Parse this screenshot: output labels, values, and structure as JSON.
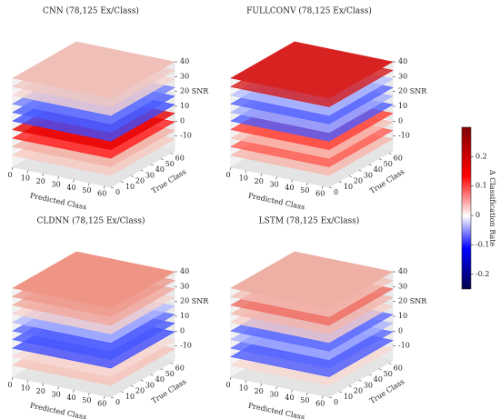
{
  "chart_data": [
    {
      "type": "cube3d",
      "title": "CNN (78,125 Ex/Class)",
      "xlabel": "Predicted Class",
      "ylabel": "True Class",
      "zlabel": "SNR",
      "xlim": [
        0,
        64
      ],
      "ylim": [
        0,
        64
      ],
      "zlim": [
        -20,
        40
      ],
      "xticks": [
        0,
        10,
        20,
        30,
        40,
        50,
        60
      ],
      "yticks": [
        0,
        10,
        20,
        30,
        40,
        50,
        60
      ],
      "zticks": [
        -10,
        0,
        10,
        20,
        30,
        40
      ]
    },
    {
      "type": "cube3d",
      "title": "FULLCONV (78,125 Ex/Class)",
      "xlabel": "Predicted Class",
      "ylabel": "True Class",
      "zlabel": "SNR",
      "xlim": [
        0,
        64
      ],
      "ylim": [
        0,
        64
      ],
      "zlim": [
        -20,
        40
      ],
      "xticks": [
        0,
        10,
        20,
        30,
        40,
        50,
        60
      ],
      "yticks": [
        0,
        10,
        20,
        30,
        40,
        50,
        60
      ],
      "zticks": [
        -10,
        0,
        10,
        20,
        30,
        40
      ]
    },
    {
      "type": "cube3d",
      "title": "CLDNN (78,125 Ex/Class)",
      "xlabel": "Predicted Class",
      "ylabel": "True Class",
      "zlabel": "SNR",
      "xlim": [
        0,
        64
      ],
      "ylim": [
        0,
        64
      ],
      "zlim": [
        -20,
        40
      ],
      "xticks": [
        0,
        10,
        20,
        30,
        40,
        50,
        60
      ],
      "yticks": [
        0,
        10,
        20,
        30,
        40,
        50,
        60
      ],
      "zticks": [
        -10,
        0,
        10,
        20,
        30,
        40
      ]
    },
    {
      "type": "cube3d",
      "title": "LSTM (78,125 Ex/Class)",
      "xlabel": "Predicted Class",
      "ylabel": "True Class",
      "zlabel": "SNR",
      "xlim": [
        0,
        64
      ],
      "ylim": [
        0,
        64
      ],
      "zlim": [
        -20,
        40
      ],
      "xticks": [
        0,
        10,
        20,
        30,
        40,
        50,
        60
      ],
      "yticks": [
        0,
        10,
        20,
        30,
        40,
        50,
        60
      ],
      "zticks": [
        -10,
        0,
        10,
        20,
        30,
        40
      ]
    }
  ],
  "colorbar": {
    "label": "Δ Classification Rate",
    "lim": [
      -0.25,
      0.3
    ],
    "ticks": [
      -0.2,
      -0.1,
      0,
      0.1,
      0.2
    ]
  }
}
